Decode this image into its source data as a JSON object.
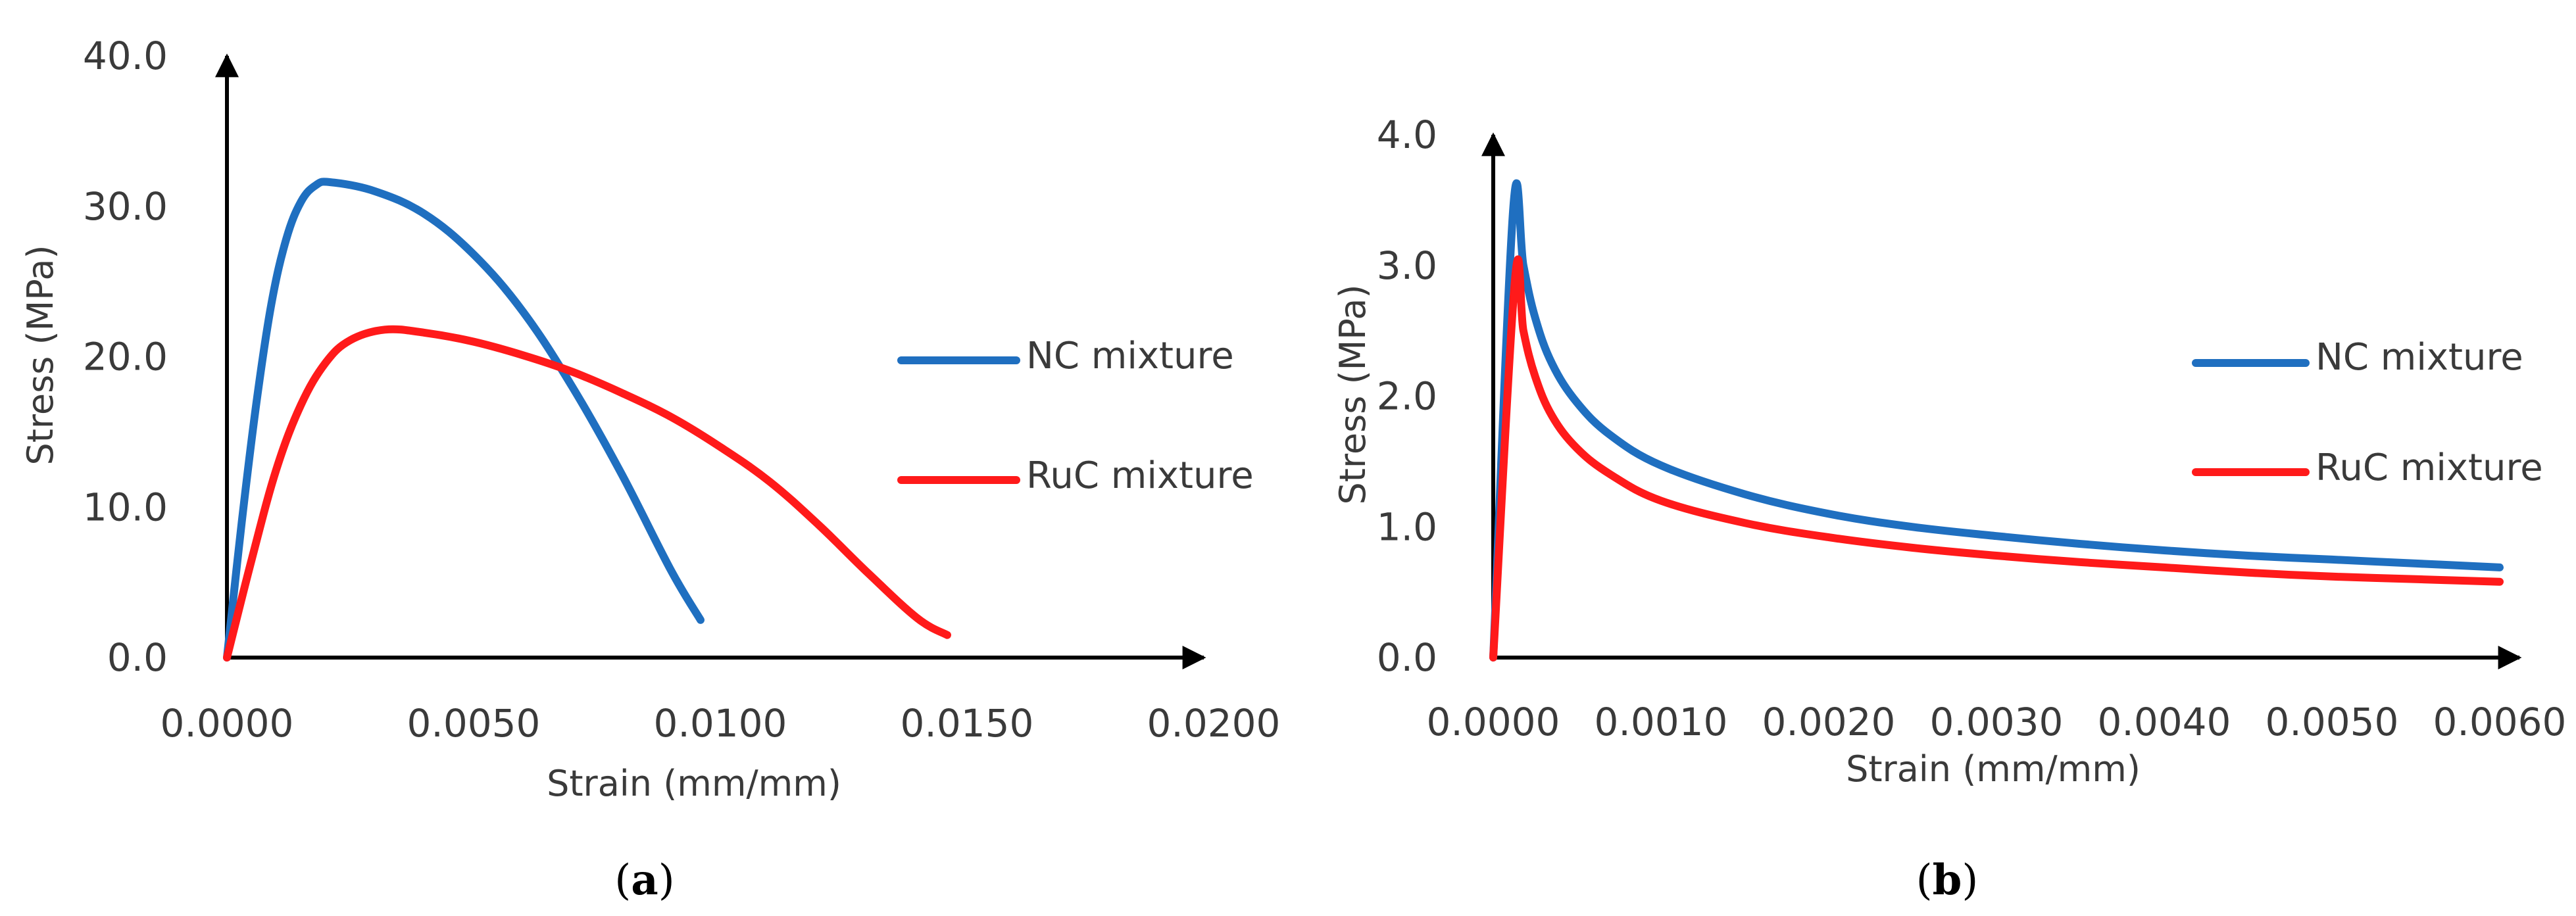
{
  "chart_data": [
    {
      "type": "line",
      "panel_label": "a",
      "xlabel": "Strain (mm/mm)",
      "ylabel": "Stress (MPa)",
      "xlim": [
        0,
        0.02
      ],
      "ylim": [
        0,
        40
      ],
      "x_ticks": [
        "0.0000",
        "0.0050",
        "0.0100",
        "0.0150",
        "0.0200"
      ],
      "y_ticks": [
        "0.0",
        "10.0",
        "20.0",
        "30.0",
        "40.0"
      ],
      "legend_position": "right",
      "series": [
        {
          "name": "NC mixture",
          "color": "#1f6fc0",
          "points": [
            [
              0,
              0
            ],
            [
              0.0003,
              9.0
            ],
            [
              0.0006,
              17.0
            ],
            [
              0.0009,
              23.5
            ],
            [
              0.0012,
              27.8
            ],
            [
              0.0015,
              30.3
            ],
            [
              0.0018,
              31.4
            ],
            [
              0.0021,
              31.6
            ],
            [
              0.003,
              31.0
            ],
            [
              0.004,
              29.5
            ],
            [
              0.005,
              26.8
            ],
            [
              0.006,
              23.0
            ],
            [
              0.007,
              18.0
            ],
            [
              0.008,
              12.2
            ],
            [
              0.009,
              5.8
            ],
            [
              0.0096,
              2.5
            ]
          ]
        },
        {
          "name": "RuC mixture",
          "color": "#ff1a1a",
          "points": [
            [
              0,
              0
            ],
            [
              0.0005,
              6.5
            ],
            [
              0.001,
              12.5
            ],
            [
              0.0015,
              16.8
            ],
            [
              0.002,
              19.6
            ],
            [
              0.0025,
              21.1
            ],
            [
              0.0032,
              21.8
            ],
            [
              0.004,
              21.6
            ],
            [
              0.005,
              21.0
            ],
            [
              0.006,
              20.1
            ],
            [
              0.007,
              19.0
            ],
            [
              0.008,
              17.6
            ],
            [
              0.009,
              16.0
            ],
            [
              0.01,
              14.0
            ],
            [
              0.011,
              11.7
            ],
            [
              0.012,
              8.8
            ],
            [
              0.013,
              5.6
            ],
            [
              0.014,
              2.6
            ],
            [
              0.0146,
              1.5
            ]
          ]
        }
      ]
    },
    {
      "type": "line",
      "panel_label": "b",
      "xlabel": "Strain (mm/mm)",
      "ylabel": "Stress (MPa)",
      "xlim": [
        0,
        0.006
      ],
      "ylim": [
        0,
        4
      ],
      "x_ticks": [
        "0.0000",
        "0.0010",
        "0.0020",
        "0.0030",
        "0.0040",
        "0.0050",
        "0.0060"
      ],
      "y_ticks": [
        "0.0",
        "1.0",
        "2.0",
        "3.0",
        "4.0"
      ],
      "legend_position": "right",
      "series": [
        {
          "name": "NC mixture",
          "color": "#1f6fc0",
          "points": [
            [
              0,
              0
            ],
            [
              0.00012,
              3.45
            ],
            [
              0.00018,
              3.0
            ],
            [
              0.00025,
              2.6
            ],
            [
              0.00035,
              2.25
            ],
            [
              0.0005,
              1.95
            ],
            [
              0.0007,
              1.7
            ],
            [
              0.001,
              1.47
            ],
            [
              0.0015,
              1.25
            ],
            [
              0.002,
              1.1
            ],
            [
              0.0025,
              1.0
            ],
            [
              0.003,
              0.93
            ],
            [
              0.0035,
              0.87
            ],
            [
              0.004,
              0.82
            ],
            [
              0.0045,
              0.78
            ],
            [
              0.005,
              0.75
            ],
            [
              0.0055,
              0.72
            ],
            [
              0.006,
              0.69
            ]
          ]
        },
        {
          "name": "RuC mixture",
          "color": "#ff1a1a",
          "points": [
            [
              0,
              0
            ],
            [
              0.00013,
              2.9
            ],
            [
              0.00018,
              2.5
            ],
            [
              0.00025,
              2.15
            ],
            [
              0.00035,
              1.85
            ],
            [
              0.0005,
              1.6
            ],
            [
              0.0007,
              1.4
            ],
            [
              0.001,
              1.2
            ],
            [
              0.0015,
              1.03
            ],
            [
              0.002,
              0.92
            ],
            [
              0.0025,
              0.84
            ],
            [
              0.003,
              0.78
            ],
            [
              0.0035,
              0.73
            ],
            [
              0.004,
              0.69
            ],
            [
              0.0045,
              0.65
            ],
            [
              0.005,
              0.62
            ],
            [
              0.0055,
              0.6
            ],
            [
              0.006,
              0.58
            ]
          ]
        }
      ]
    }
  ]
}
